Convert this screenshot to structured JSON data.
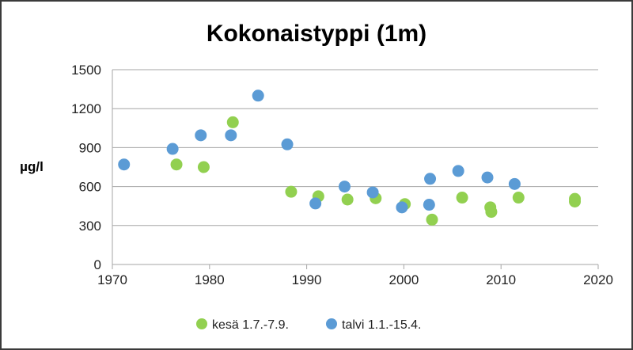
{
  "chart_data": {
    "type": "scatter",
    "title": "Kokonaistyppi (1m)",
    "xlabel": "",
    "ylabel": "µg/l",
    "xlim": [
      1970,
      2020
    ],
    "ylim": [
      0,
      1500
    ],
    "xticks": [
      "1970",
      "1980",
      "1990",
      "2000",
      "2010",
      "2020"
    ],
    "yticks": [
      "0",
      "300",
      "600",
      "900",
      "1200",
      "1500"
    ],
    "grid": "horizontal",
    "legend_position": "bottom",
    "series": [
      {
        "name": "kesä 1.7.-7.9.",
        "color": "#92d050",
        "points": [
          [
            1976.6,
            770
          ],
          [
            1979.4,
            750
          ],
          [
            1982.4,
            1095
          ],
          [
            1988.4,
            560
          ],
          [
            1991.2,
            525
          ],
          [
            1994.2,
            500
          ],
          [
            1997.1,
            510
          ],
          [
            2000.1,
            465
          ],
          [
            2002.9,
            345
          ],
          [
            2006.0,
            515
          ],
          [
            2008.9,
            440
          ],
          [
            2009.0,
            405
          ],
          [
            2011.8,
            515
          ],
          [
            2017.6,
            505
          ],
          [
            2017.6,
            485
          ]
        ]
      },
      {
        "name": "talvi 1.1.-15.4.",
        "color": "#5b9bd5",
        "points": [
          [
            1971.2,
            770
          ],
          [
            1976.2,
            890
          ],
          [
            1979.1,
            995
          ],
          [
            1982.2,
            995
          ],
          [
            1985.0,
            1300
          ],
          [
            1988.0,
            925
          ],
          [
            1990.9,
            470
          ],
          [
            1993.9,
            600
          ],
          [
            1996.8,
            555
          ],
          [
            1999.8,
            440
          ],
          [
            2002.6,
            460
          ],
          [
            2002.7,
            660
          ],
          [
            2005.6,
            720
          ],
          [
            2008.6,
            670
          ],
          [
            2011.4,
            620
          ]
        ]
      }
    ]
  }
}
